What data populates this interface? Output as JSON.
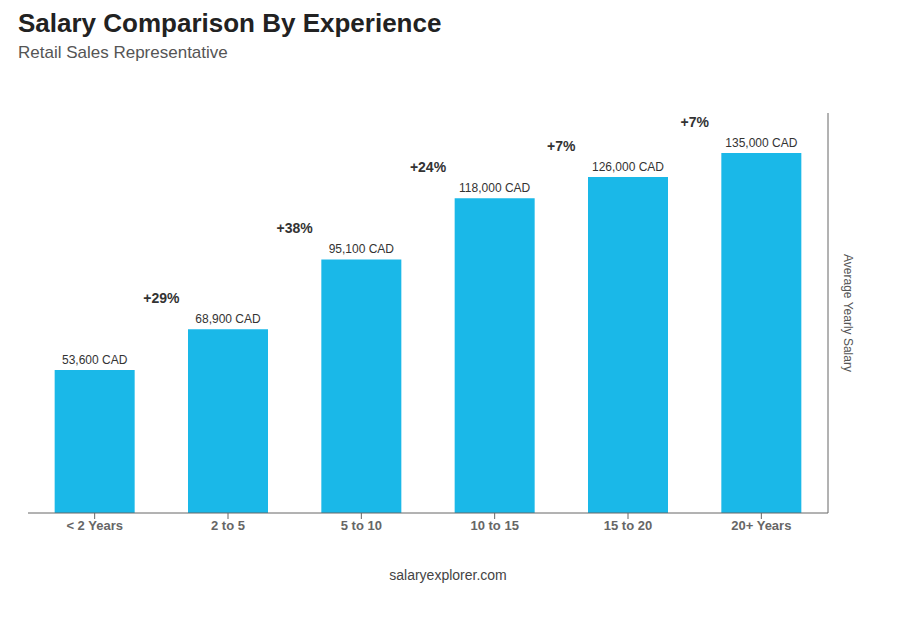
{
  "chart_data": {
    "type": "bar",
    "title": "Salary Comparison By Experience",
    "subtitle": "Retail Sales Representative",
    "categories": [
      "< 2 Years",
      "2 to 5",
      "5 to 10",
      "10 to 15",
      "15 to 20",
      "20+ Years"
    ],
    "values": [
      53600,
      68900,
      95100,
      118000,
      126000,
      135000
    ],
    "value_labels": [
      "53,600 CAD",
      "68,900 CAD",
      "95,100 CAD",
      "118,000 CAD",
      "126,000 CAD",
      "135,000 CAD"
    ],
    "data_labels": true,
    "annotations": [
      "+29%",
      "+38%",
      "+24%",
      "+7%",
      "+7%",
      "salaryexplorer.com"
    ],
    "ylabel": "Average Yearly Salary",
    "ylim": [
      0,
      150000
    ],
    "tick_labels": "x",
    "grid": false,
    "color": "#1ab8e8"
  }
}
